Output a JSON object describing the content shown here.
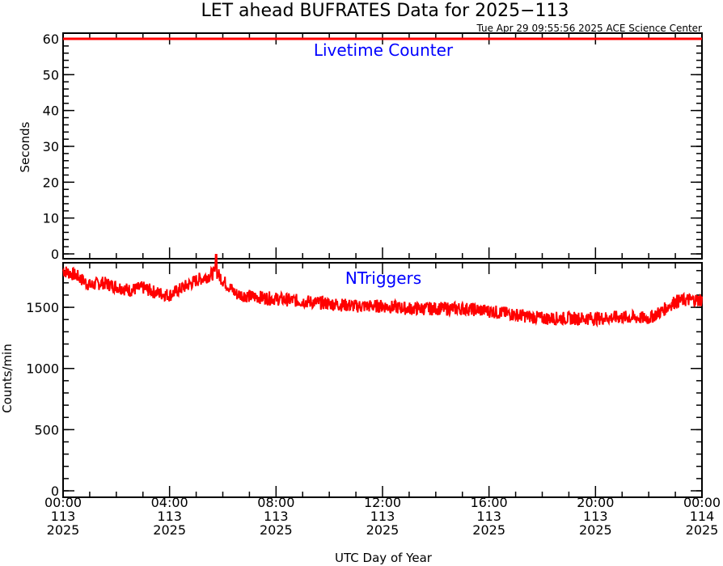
{
  "chart_data": {
    "title": "LET ahead BUFRATES Data for 2025−113",
    "timestamp": "Tue Apr 29 09:55:56 2025 ACE Science Center",
    "xlabel": "UTC Day of Year",
    "x_ticks": [
      {
        "time": "00:00",
        "doy": "113",
        "year": "2025"
      },
      {
        "time": "04:00",
        "doy": "113",
        "year": "2025"
      },
      {
        "time": "08:00",
        "doy": "113",
        "year": "2025"
      },
      {
        "time": "12:00",
        "doy": "113",
        "year": "2025"
      },
      {
        "time": "16:00",
        "doy": "113",
        "year": "2025"
      },
      {
        "time": "20:00",
        "doy": "113",
        "year": "2025"
      },
      {
        "time": "00:00",
        "doy": "114",
        "year": "2025"
      }
    ],
    "colors": {
      "line": "#ff0000",
      "panel_title": "#0000ff",
      "axes": "#000000"
    },
    "panels": [
      {
        "type": "line",
        "title": "Livetime Counter",
        "ylabel": "Seconds",
        "ylim": [
          0,
          60
        ],
        "y_ticks": [
          "0",
          "10",
          "20",
          "30",
          "40",
          "50",
          "60"
        ],
        "x_hours": [
          0,
          24
        ],
        "values": [
          60,
          60
        ]
      },
      {
        "type": "line",
        "title": "NTriggers",
        "ylabel": "Counts/min",
        "ylim": [
          0,
          1950
        ],
        "y_ticks": [
          "0",
          "500",
          "1000",
          "1500"
        ],
        "x_hours": [
          0,
          0.5,
          1,
          1.5,
          2,
          2.5,
          3,
          3.5,
          4,
          4.5,
          5,
          5.5,
          5.75,
          6,
          6.5,
          7,
          8,
          9,
          10,
          11,
          12,
          13,
          14,
          15,
          16,
          17,
          18,
          19,
          20,
          21,
          22,
          22.5,
          23,
          23.5,
          24
        ],
        "values": [
          1800,
          1760,
          1680,
          1700,
          1670,
          1640,
          1660,
          1620,
          1600,
          1660,
          1720,
          1760,
          1790,
          1720,
          1610,
          1590,
          1570,
          1550,
          1530,
          1510,
          1510,
          1490,
          1490,
          1490,
          1470,
          1440,
          1410,
          1410,
          1410,
          1420,
          1410,
          1470,
          1550,
          1560,
          1560
        ],
        "noise": 55
      }
    ]
  }
}
